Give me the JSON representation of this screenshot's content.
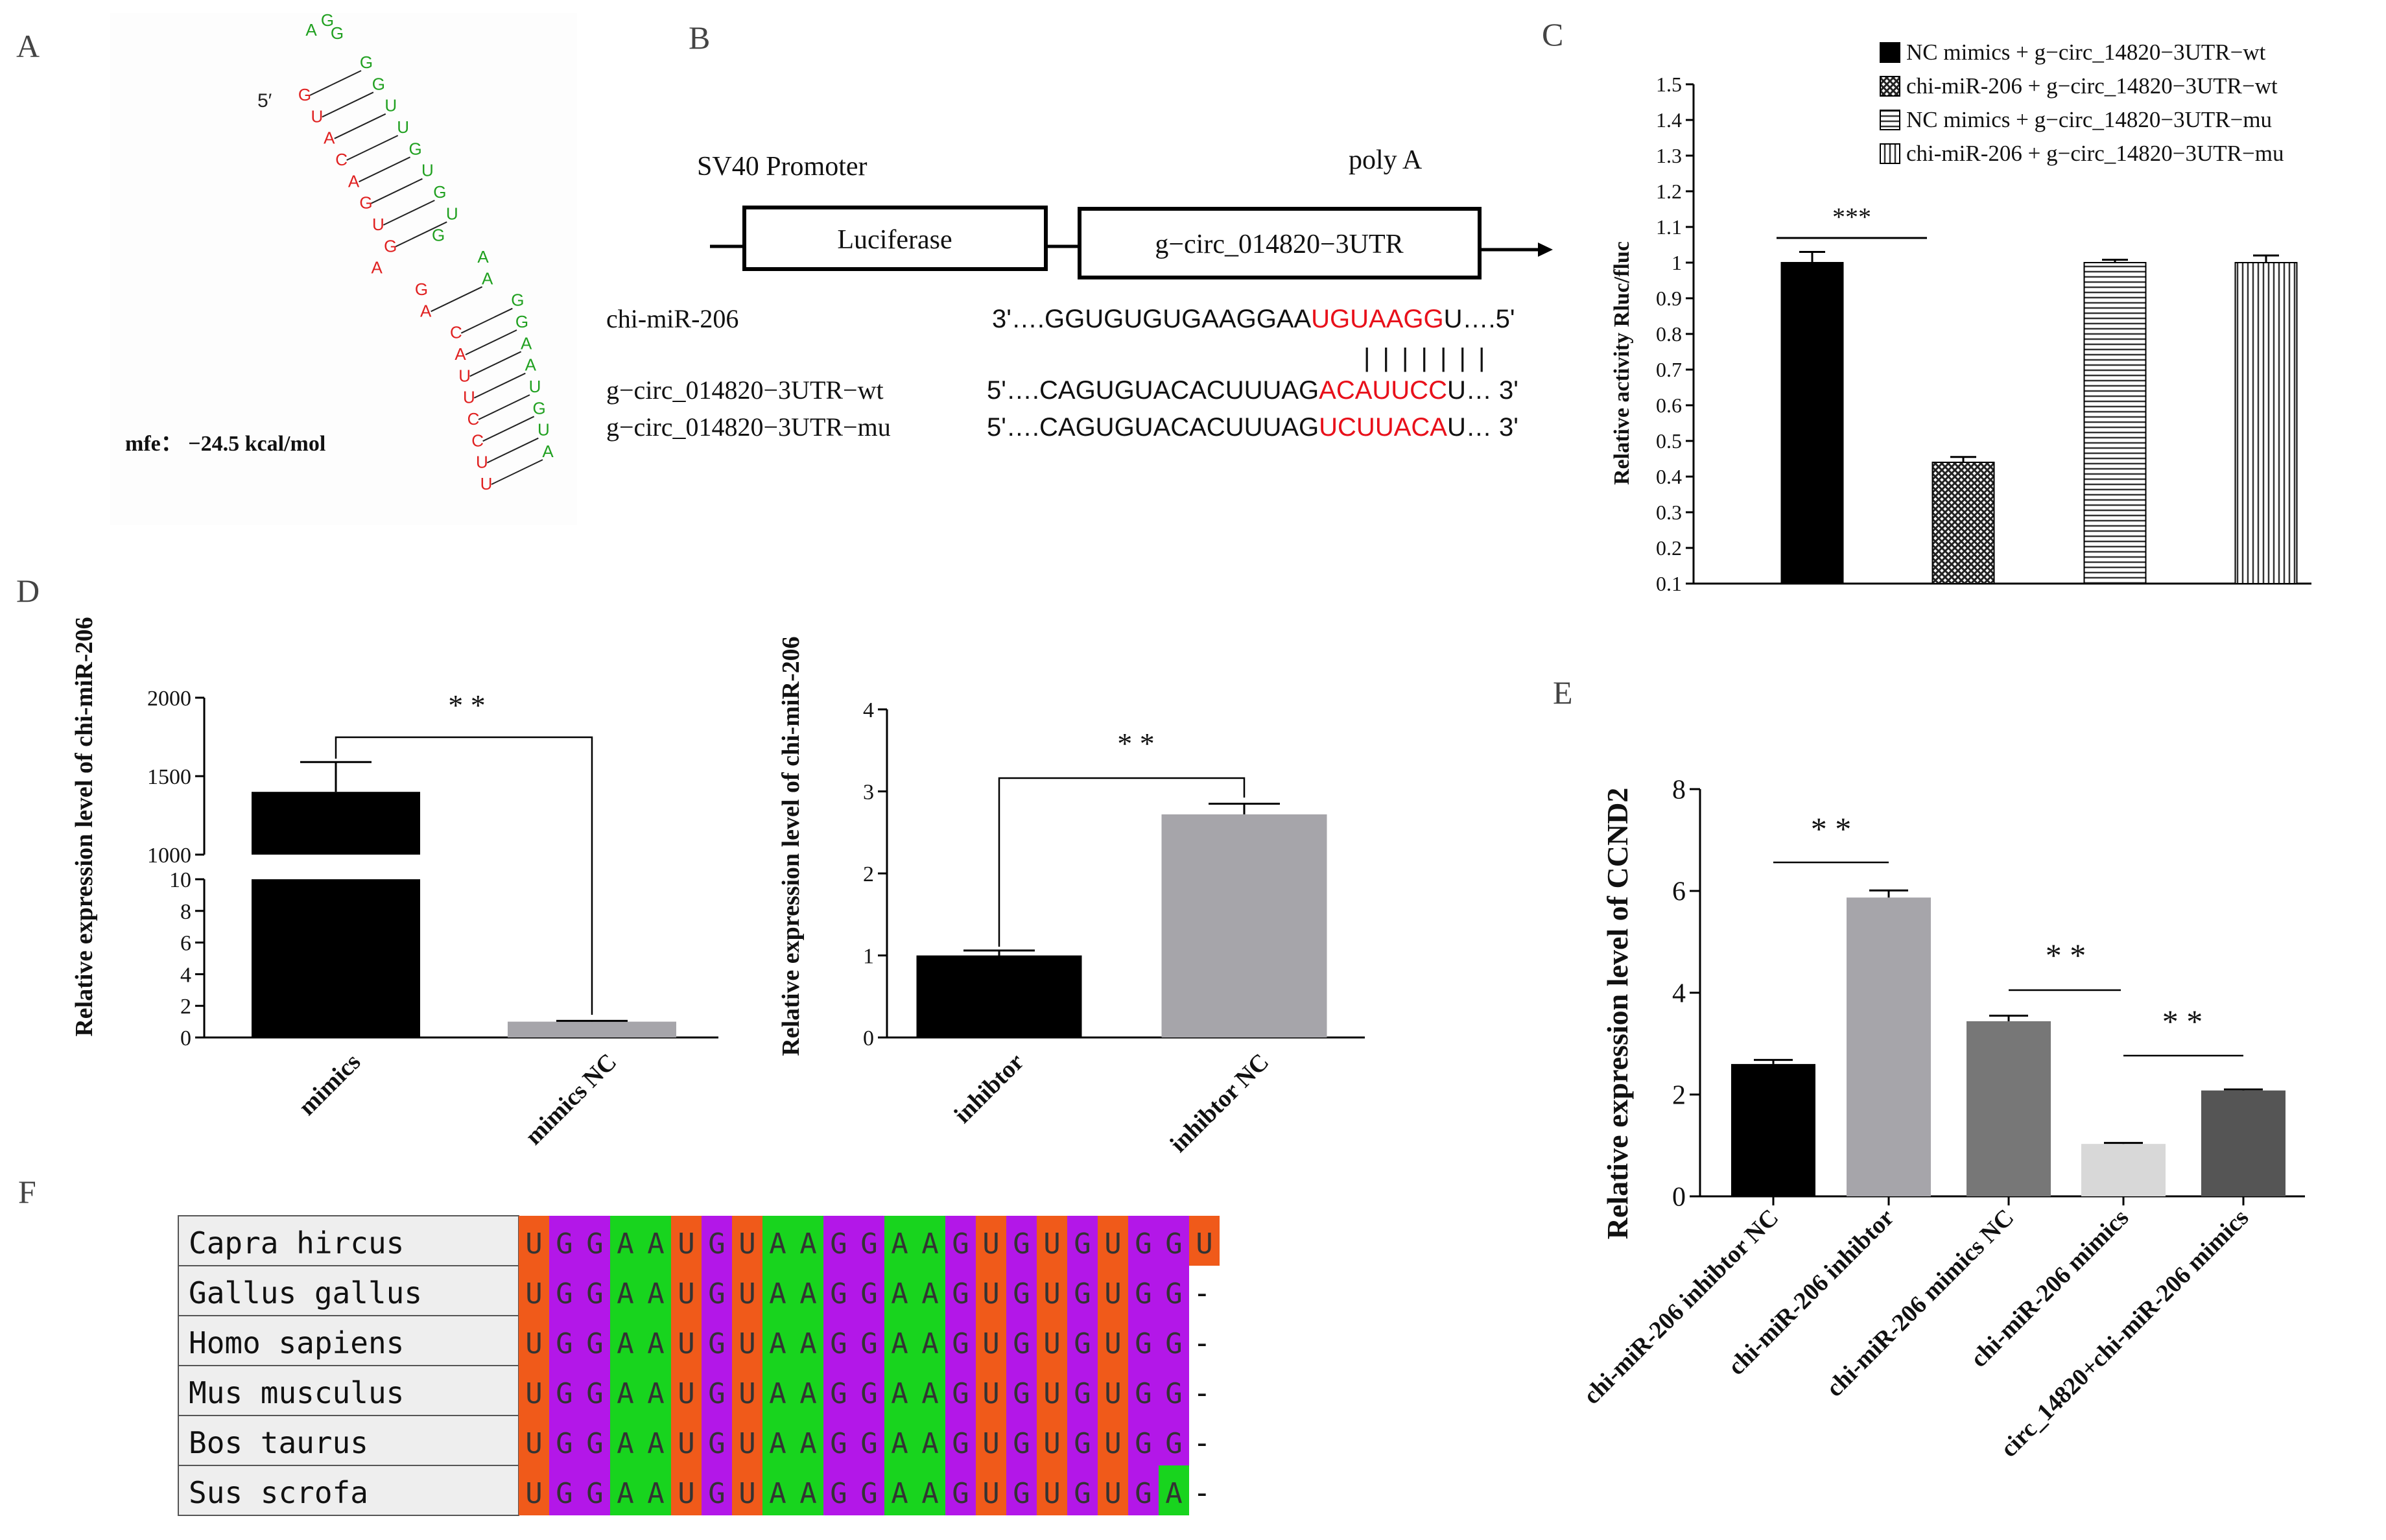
{
  "panel_letters": {
    "a": "A",
    "b": "B",
    "c": "C",
    "d": "D",
    "e": "E",
    "f": "F"
  },
  "panel_a": {
    "five_prime": "5′",
    "mfe": "mfe： −24.5 kcal/mol",
    "strand_red": [
      "G",
      "U",
      "A",
      "C",
      "A",
      "G",
      "U",
      "G",
      "A",
      "G",
      "A",
      "C",
      "A",
      "U",
      "U",
      "C",
      "C",
      "U",
      "U"
    ],
    "strand_green": [
      "G",
      "G",
      "U",
      "U",
      "G",
      "U",
      "G",
      "U",
      "G",
      "A",
      "A",
      "G",
      "G",
      "A",
      "A",
      "U",
      "G",
      "U",
      "A",
      "A",
      "G",
      "G"
    ]
  },
  "panel_b": {
    "promoter": "SV40 Promoter",
    "polya": "poly A",
    "box1": "Luciferase",
    "box2": "g−circ_014820−3UTR",
    "rows": [
      {
        "label": "chi-miR-206",
        "pre": "3'….GGUGUGUGAAGGAA",
        "site": "UGUAAGG",
        "post": "U….5'"
      },
      {
        "label": "g−circ_014820−3UTR−wt",
        "pre": "5'….CAGUGUACACUUUAG",
        "site": "ACAUUCC",
        "post": "U… 3'"
      },
      {
        "label": "g−circ_014820−3UTR−mu",
        "pre": "5'….CAGUGUACACUUUAG",
        "site": "UCUUACA",
        "post": "U… 3'"
      }
    ],
    "pairing": "| | | | | | |",
    "site_color": "#e8101a"
  },
  "chart_data": [
    {
      "id": "C",
      "type": "bar",
      "title": "",
      "ylabel": "Relative activity Rluc/fluc",
      "xlabel": "",
      "ylim": [
        0.1,
        1.5
      ],
      "yticks": [
        "0.1",
        "0.2",
        "0.3",
        "0.4",
        "0.5",
        "0.6",
        "0.7",
        "0.8",
        "0.9",
        "1",
        "1.1",
        "1.2",
        "1.3",
        "1.4",
        "1.5"
      ],
      "series": [
        {
          "name": "NC mimics + g−circ_14820−3UTR−wt",
          "value": 1.0,
          "err": 0.03,
          "pattern": "solid"
        },
        {
          "name": "chi-miR-206 + g−circ_14820−3UTR−wt",
          "value": 0.44,
          "err": 0.015,
          "pattern": "crosshatch"
        },
        {
          "name": "NC mimics + g−circ_14820−3UTR−mu",
          "value": 1.0,
          "err": 0.008,
          "pattern": "hlines"
        },
        {
          "name": "chi-miR-206 + g−circ_14820−3UTR−mu",
          "value": 1.0,
          "err": 0.02,
          "pattern": "vlines"
        }
      ],
      "annotations": [
        "***"
      ],
      "legend": "top-right"
    },
    {
      "id": "D-left",
      "type": "bar",
      "ylabel": "Relative expression level of chi-miR-206",
      "categories": [
        "mimics",
        "mimics NC"
      ],
      "values": [
        1400,
        1.0
      ],
      "errors": [
        190,
        0.05
      ],
      "colors": [
        "#000000",
        "#a6a5aa"
      ],
      "broken_axis": {
        "lower": [
          0,
          10
        ],
        "upper": [
          1000,
          2000
        ]
      },
      "yticks_lower": [
        "0",
        "2",
        "4",
        "6",
        "8",
        "10"
      ],
      "yticks_upper": [
        "1000",
        "1500",
        "2000"
      ],
      "annotations": [
        "* *"
      ]
    },
    {
      "id": "D-right",
      "type": "bar",
      "ylabel": "Relative expression level of chi-miR-206",
      "categories": [
        "inhibtor",
        "inhibtor NC"
      ],
      "values": [
        1.0,
        2.72
      ],
      "errors": [
        0.06,
        0.13
      ],
      "colors": [
        "#000000",
        "#a6a5aa"
      ],
      "ylim": [
        0,
        4
      ],
      "yticks": [
        "0",
        "1",
        "2",
        "3",
        "4"
      ],
      "annotations": [
        "* *"
      ]
    },
    {
      "id": "E",
      "type": "bar",
      "ylabel": "Relative expression level of CCND2",
      "categories": [
        "chi-miR-206 inhibtor NC",
        "chi-miR-206 inhibtor",
        "chi-miR-206 mimics NC",
        "chi-miR-206 mimics",
        "circ_14820+chi-miR-206 mimics"
      ],
      "values": [
        2.6,
        5.87,
        3.44,
        1.03,
        2.08
      ],
      "errors": [
        0.08,
        0.14,
        0.11,
        0.02,
        0.02
      ],
      "colors": [
        "#000000",
        "#a6a5aa",
        "#777777",
        "#d8d8d8",
        "#555555"
      ],
      "ylim": [
        0,
        8
      ],
      "yticks": [
        "0",
        "2",
        "4",
        "6",
        "8"
      ],
      "annotations": [
        "* *",
        "* *",
        "* *"
      ]
    }
  ],
  "panel_f": {
    "species": [
      "Capra hircus",
      "Gallus gallus",
      "Homo sapiens",
      "Mus musculus",
      "Bos taurus",
      "Sus scrofa"
    ],
    "sequences": [
      "UGGAAUGUAAGGAAGUGUGUGGU",
      "UGGAAUGUAAGGAAGUGUGUGG-",
      "UGGAAUGUAAGGAAGUGUGUGG-",
      "UGGAAUGUAAGGAAGUGUGUGG-",
      "UGGAAUGUAAGGAAGUGUGUGG-",
      "UGGAAUGUAAGGAAGUGUGUGA-"
    ],
    "colors": {
      "U": "#f05a1a",
      "G": "#b317e8",
      "A": "#18d41e"
    }
  }
}
